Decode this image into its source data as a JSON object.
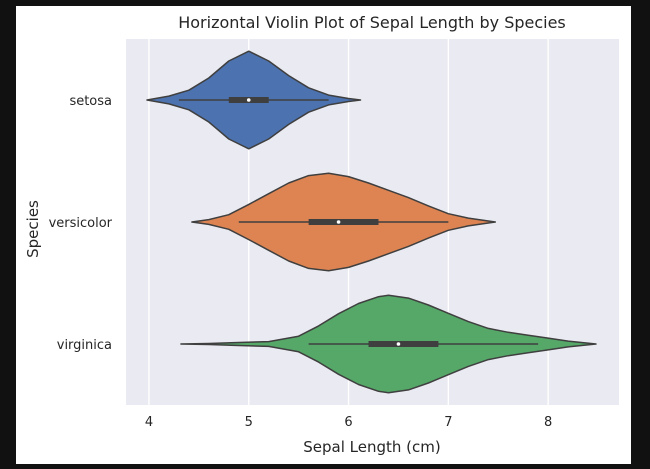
{
  "chart_data": {
    "type": "violin",
    "orientation": "horizontal",
    "title": "Horizontal Violin Plot of Sepal Length by Species",
    "xlabel": "Sepal Length (cm)",
    "ylabel": "Species",
    "xlim": [
      3.77,
      8.71
    ],
    "xticks": [
      4,
      5,
      6,
      7,
      8
    ],
    "grid": true,
    "categories": [
      "setosa",
      "versicolor",
      "virginica"
    ],
    "series": [
      {
        "category": "setosa",
        "color": "#4c72b0",
        "range": [
          3.98,
          6.12
        ],
        "profile": [
          [
            3.98,
            0.0
          ],
          [
            4.2,
            0.08
          ],
          [
            4.4,
            0.2
          ],
          [
            4.6,
            0.45
          ],
          [
            4.8,
            0.8
          ],
          [
            5.0,
            1.0
          ],
          [
            5.2,
            0.8
          ],
          [
            5.4,
            0.5
          ],
          [
            5.6,
            0.25
          ],
          [
            5.8,
            0.1
          ],
          [
            6.0,
            0.03
          ],
          [
            6.12,
            0.0
          ]
        ],
        "whisker": [
          4.3,
          5.8
        ],
        "q1": 4.8,
        "median": 5.0,
        "q3": 5.2
      },
      {
        "category": "versicolor",
        "color": "#dd8452",
        "range": [
          4.43,
          7.47
        ],
        "profile": [
          [
            4.43,
            0.0
          ],
          [
            4.6,
            0.05
          ],
          [
            4.8,
            0.15
          ],
          [
            5.0,
            0.36
          ],
          [
            5.2,
            0.58
          ],
          [
            5.4,
            0.8
          ],
          [
            5.6,
            0.95
          ],
          [
            5.8,
            1.0
          ],
          [
            6.0,
            0.93
          ],
          [
            6.2,
            0.8
          ],
          [
            6.4,
            0.65
          ],
          [
            6.6,
            0.5
          ],
          [
            6.8,
            0.33
          ],
          [
            7.0,
            0.17
          ],
          [
            7.2,
            0.08
          ],
          [
            7.47,
            0.0
          ]
        ],
        "whisker": [
          4.9,
          7.0
        ],
        "q1": 5.6,
        "median": 5.9,
        "q3": 6.3
      },
      {
        "category": "virginica",
        "color": "#55a868",
        "range": [
          4.32,
          8.48
        ],
        "profile": [
          [
            4.32,
            0.0
          ],
          [
            4.6,
            0.01
          ],
          [
            4.9,
            0.03
          ],
          [
            5.2,
            0.05
          ],
          [
            5.5,
            0.16
          ],
          [
            5.7,
            0.37
          ],
          [
            5.9,
            0.62
          ],
          [
            6.1,
            0.83
          ],
          [
            6.3,
            0.97
          ],
          [
            6.4,
            1.0
          ],
          [
            6.6,
            0.94
          ],
          [
            6.8,
            0.8
          ],
          [
            7.0,
            0.63
          ],
          [
            7.2,
            0.46
          ],
          [
            7.4,
            0.32
          ],
          [
            7.6,
            0.24
          ],
          [
            7.8,
            0.18
          ],
          [
            8.0,
            0.12
          ],
          [
            8.2,
            0.06
          ],
          [
            8.48,
            0.0
          ]
        ],
        "whisker": [
          5.6,
          7.9
        ],
        "q1": 6.2,
        "median": 6.5,
        "q3": 6.9
      }
    ]
  }
}
